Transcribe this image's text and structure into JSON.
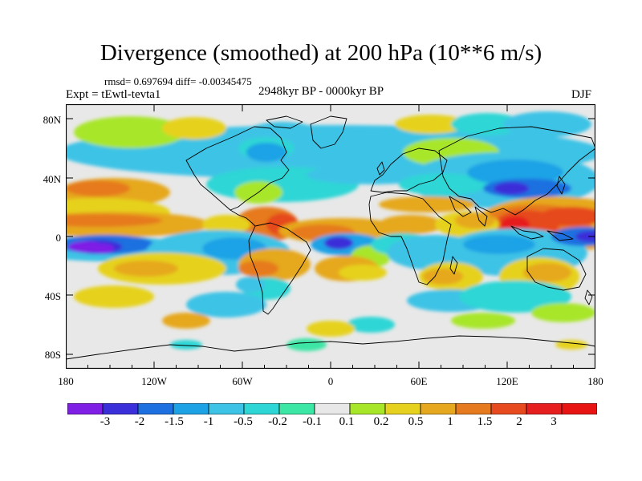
{
  "title": "Divergence (smoothed) at 200 hPa (10**6 m/s)",
  "stats": "rmsd= 0.697694 diff= -0.00345475",
  "experiment": "Expt = tEwtl-tevta1",
  "period": "2948kyr BP - 0000kyr BP",
  "season": "DJF",
  "lat_labels": [
    "80N",
    "40N",
    "0",
    "40S",
    "80S"
  ],
  "lon_labels": [
    "180",
    "120W",
    "60W",
    "0",
    "60E",
    "120E",
    "180"
  ],
  "colorbar": {
    "labels": [
      "-3",
      "-2",
      "-1.5",
      "-1",
      "-0.5",
      "-0.2",
      "-0.1",
      "0.1",
      "0.2",
      "0.5",
      "1",
      "1.5",
      "2",
      "3"
    ],
    "colors": [
      "#7f1fe6",
      "#3a2fd9",
      "#1e6fe0",
      "#1ea2e6",
      "#3cc3e6",
      "#2fd6d6",
      "#3ce6a5",
      "#e8e8e8",
      "#a8e62a",
      "#e6d21e",
      "#e6a81e",
      "#e67a1e",
      "#e64a1e",
      "#e61e1e"
    ]
  },
  "field_colors": {
    "gray": "#e8e8e8",
    "lightblue": "#3cc3e6",
    "blue": "#1ea2e6",
    "dblue": "#1e6fe0",
    "navy": "#3a2fd9",
    "purple": "#7f1fe6",
    "teal": "#2fd6d6",
    "green": "#3ce6a5",
    "lime": "#a8e62a",
    "yellow": "#e6d21e",
    "gold": "#e6a81e",
    "orange": "#e67a1e",
    "dorange": "#e64a1e",
    "red": "#e61e1e"
  }
}
